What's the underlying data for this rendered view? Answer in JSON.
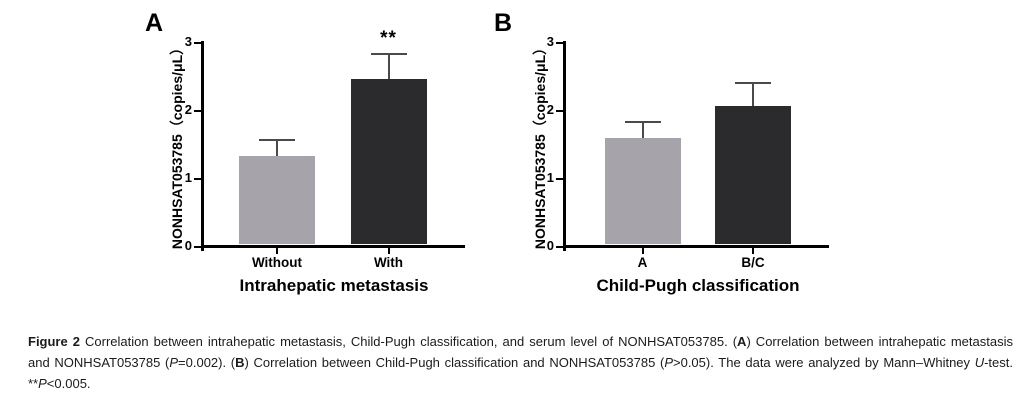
{
  "figure": {
    "caption_segments": [
      {
        "text": "Figure 2 ",
        "bold": true
      },
      {
        "text": "Correlation between intrahepatic metastasis, Child-Pugh classification, and serum level of NONHSAT053785. ("
      },
      {
        "text": "A",
        "bold": true
      },
      {
        "text": ") Correlation between intrahepatic metastasis and NONHSAT053785 ("
      },
      {
        "text": "P",
        "italic": true
      },
      {
        "text": "=0.002). ("
      },
      {
        "text": "B",
        "bold": true
      },
      {
        "text": ") Correlation between Child-Pugh classification and NONHSAT053785 ("
      },
      {
        "text": "P",
        "italic": true
      },
      {
        "text": ">0.05). The data were analyzed by Mann–Whitney "
      },
      {
        "text": "U",
        "italic": true
      },
      {
        "text": "-test. **"
      },
      {
        "text": "P",
        "italic": true
      },
      {
        "text": "<0.005."
      }
    ]
  },
  "chart_data": [
    {
      "type": "bar",
      "panel_label": "A",
      "categories": [
        "Without",
        "With"
      ],
      "values": [
        1.33,
        2.47
      ],
      "errors_up": [
        0.25,
        0.38
      ],
      "bar_colors": [
        "#a7a3aa",
        "#2b2a2c"
      ],
      "error_color": "#4a4a4a",
      "ylabel": "NONHSAT053785（copies/μL）",
      "xlabel": "Intrahepatic metastasis",
      "ylim": [
        0,
        3
      ],
      "yticks": [
        0,
        1,
        2,
        3
      ],
      "grid": false,
      "annotations": [
        {
          "text": "**",
          "category": "With"
        }
      ]
    },
    {
      "type": "bar",
      "panel_label": "B",
      "categories": [
        "A",
        "B/C"
      ],
      "values": [
        1.6,
        2.07
      ],
      "errors_up": [
        0.25,
        0.36
      ],
      "bar_colors": [
        "#a7a3aa",
        "#2b2a2c"
      ],
      "error_color": "#4a4a4a",
      "ylabel": "NONHSAT053785（copies/μL）",
      "xlabel": "Child-Pugh classification",
      "ylim": [
        0,
        3
      ],
      "yticks": [
        0,
        1,
        2,
        3
      ],
      "grid": false,
      "annotations": []
    }
  ]
}
